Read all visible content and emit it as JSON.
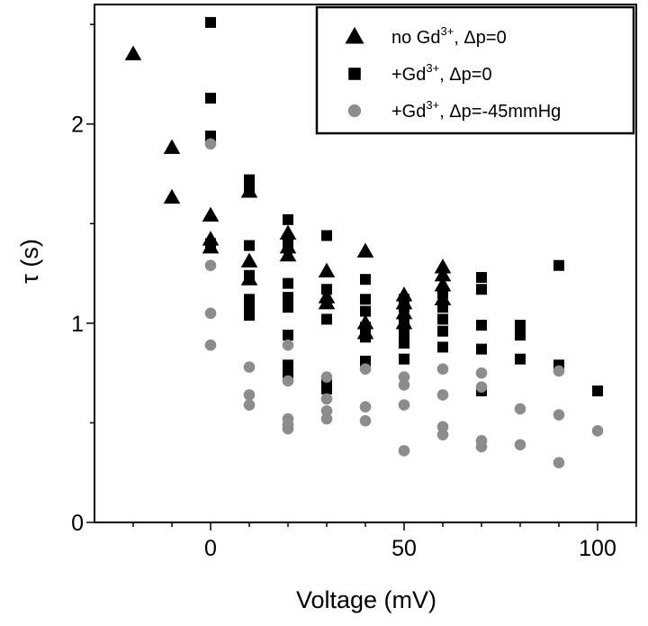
{
  "chart_data": {
    "type": "scatter",
    "title": "",
    "xlabel": "Voltage (mV)",
    "ylabel": "τ (s)",
    "xlim": [
      -30,
      110
    ],
    "ylim": [
      0,
      2.6
    ],
    "xticks": [
      0,
      50,
      100
    ],
    "yticks": [
      0,
      1,
      2
    ],
    "legend_position": "top-right",
    "series": [
      {
        "name": "no Gd3+, Δp=0",
        "legend_main": "no Gd",
        "legend_sup": "3+",
        "legend_rest": ", Δp=0",
        "marker": "triangle",
        "color": "#000000",
        "points": [
          [
            -20,
            2.35
          ],
          [
            -10,
            1.88
          ],
          [
            -10,
            1.63
          ],
          [
            0,
            1.54
          ],
          [
            0,
            1.42
          ],
          [
            0,
            1.38
          ],
          [
            10,
            1.66
          ],
          [
            10,
            1.31
          ],
          [
            10,
            1.22
          ],
          [
            20,
            1.45
          ],
          [
            20,
            1.38
          ],
          [
            20,
            1.34
          ],
          [
            30,
            1.26
          ],
          [
            30,
            1.13
          ],
          [
            30,
            1.1
          ],
          [
            40,
            1.36
          ],
          [
            40,
            1.0
          ],
          [
            40,
            0.95
          ],
          [
            50,
            1.14
          ],
          [
            50,
            1.1
          ],
          [
            50,
            1.05
          ],
          [
            50,
            1.0
          ],
          [
            60,
            1.28
          ],
          [
            60,
            1.24
          ],
          [
            60,
            1.19
          ],
          [
            60,
            1.12
          ]
        ]
      },
      {
        "name": "+Gd3+, Δp=0",
        "legend_main": "+Gd",
        "legend_sup": "3+",
        "legend_rest": ", Δp=0",
        "marker": "square",
        "color": "#000000",
        "points": [
          [
            0,
            2.51
          ],
          [
            0,
            2.13
          ],
          [
            0,
            1.94
          ],
          [
            0,
            1.4
          ],
          [
            10,
            1.72
          ],
          [
            10,
            1.68
          ],
          [
            10,
            1.39
          ],
          [
            10,
            1.24
          ],
          [
            10,
            1.12
          ],
          [
            10,
            1.08
          ],
          [
            10,
            1.04
          ],
          [
            20,
            1.52
          ],
          [
            20,
            1.4
          ],
          [
            20,
            1.2
          ],
          [
            20,
            1.13
          ],
          [
            20,
            1.08
          ],
          [
            20,
            0.94
          ],
          [
            20,
            0.79
          ],
          [
            20,
            0.75
          ],
          [
            30,
            1.44
          ],
          [
            30,
            1.17
          ],
          [
            30,
            1.02
          ],
          [
            30,
            0.7
          ],
          [
            30,
            0.67
          ],
          [
            40,
            1.22
          ],
          [
            40,
            1.12
          ],
          [
            40,
            1.06
          ],
          [
            40,
            0.98
          ],
          [
            40,
            0.93
          ],
          [
            40,
            0.81
          ],
          [
            50,
            1.12
          ],
          [
            50,
            1.08
          ],
          [
            50,
            1.0
          ],
          [
            50,
            0.95
          ],
          [
            50,
            0.9
          ],
          [
            50,
            0.82
          ],
          [
            60,
            1.15
          ],
          [
            60,
            1.08
          ],
          [
            60,
            1.02
          ],
          [
            60,
            0.96
          ],
          [
            60,
            0.88
          ],
          [
            70,
            1.23
          ],
          [
            70,
            1.17
          ],
          [
            70,
            0.99
          ],
          [
            70,
            0.87
          ],
          [
            70,
            0.66
          ],
          [
            80,
            0.99
          ],
          [
            80,
            0.94
          ],
          [
            80,
            0.82
          ],
          [
            90,
            1.29
          ],
          [
            90,
            0.79
          ],
          [
            100,
            0.66
          ]
        ]
      },
      {
        "name": "+Gd3+, Δp=-45mmHg",
        "legend_main": "+Gd",
        "legend_sup": "3+",
        "legend_rest": ", Δp=-45mmHg",
        "marker": "circle",
        "color": "#8c8c8c",
        "points": [
          [
            0,
            1.9
          ],
          [
            0,
            1.29
          ],
          [
            0,
            1.05
          ],
          [
            0,
            0.89
          ],
          [
            10,
            0.78
          ],
          [
            10,
            0.64
          ],
          [
            10,
            0.59
          ],
          [
            20,
            0.89
          ],
          [
            20,
            0.71
          ],
          [
            20,
            0.52
          ],
          [
            20,
            0.49
          ],
          [
            20,
            0.47
          ],
          [
            30,
            0.73
          ],
          [
            30,
            0.62
          ],
          [
            30,
            0.56
          ],
          [
            30,
            0.52
          ],
          [
            40,
            0.77
          ],
          [
            40,
            0.58
          ],
          [
            40,
            0.51
          ],
          [
            50,
            0.73
          ],
          [
            50,
            0.69
          ],
          [
            50,
            0.59
          ],
          [
            50,
            0.36
          ],
          [
            60,
            0.77
          ],
          [
            60,
            0.64
          ],
          [
            60,
            0.48
          ],
          [
            60,
            0.44
          ],
          [
            70,
            0.75
          ],
          [
            70,
            0.68
          ],
          [
            70,
            0.41
          ],
          [
            70,
            0.38
          ],
          [
            80,
            0.57
          ],
          [
            80,
            0.39
          ],
          [
            90,
            0.76
          ],
          [
            90,
            0.54
          ],
          [
            90,
            0.3
          ],
          [
            100,
            0.46
          ]
        ]
      }
    ]
  }
}
